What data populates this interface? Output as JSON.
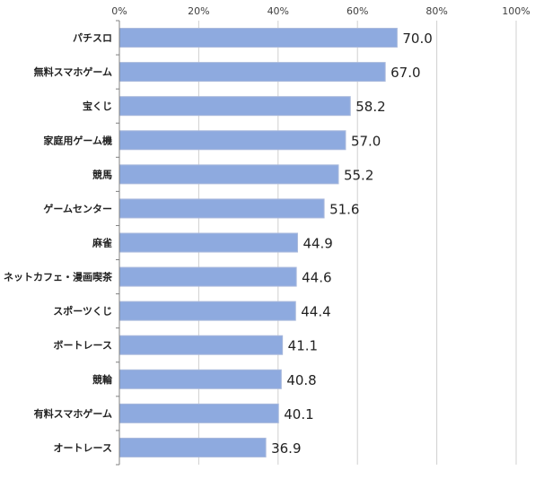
{
  "chart_data": {
    "type": "bar",
    "orientation": "horizontal",
    "title": "",
    "xlabel": "",
    "ylabel": "",
    "xlim": [
      0,
      100
    ],
    "ticks": [
      "0%",
      "20%",
      "40%",
      "60%",
      "80%",
      "100%"
    ],
    "tick_values": [
      0,
      20,
      40,
      60,
      80,
      100
    ],
    "categories": [
      "パチスロ",
      "無料スマホゲーム",
      "宝くじ",
      "家庭用ゲーム機",
      "競馬",
      "ゲームセンター",
      "麻雀",
      "ネットカフェ・漫画喫茶",
      "スポーツくじ",
      "ボートレース",
      "競輪",
      "有料スマホゲーム",
      "オートレース"
    ],
    "values": [
      70.0,
      67.0,
      58.2,
      57.0,
      55.2,
      51.6,
      44.9,
      44.6,
      44.4,
      41.1,
      40.8,
      40.1,
      36.9
    ],
    "value_labels": [
      "70.0",
      "67.0",
      "58.2",
      "57.0",
      "55.2",
      "51.6",
      "44.9",
      "44.6",
      "44.4",
      "41.1",
      "40.8",
      "40.1",
      "36.9"
    ],
    "grid": true,
    "legend": "none",
    "bar_color": "#8eaadf"
  }
}
